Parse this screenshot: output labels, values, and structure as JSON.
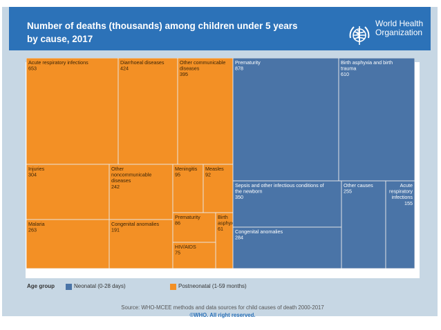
{
  "header": {
    "title_line1": "Number of deaths (thousands) among children under 5 years",
    "title_line2": "by cause, 2017",
    "org_line1": "World Health",
    "org_line2": "Organization"
  },
  "legend": {
    "title": "Age group",
    "items": [
      {
        "label": "Neonatal (0-28 days)",
        "color": "#4a74a7"
      },
      {
        "label": "Postneonatal (1-59 months)",
        "color": "#f39025"
      }
    ]
  },
  "source": {
    "text": "Source: WHO-MCEE methods and data sources for child causes of death 2000-2017",
    "copyright": "©WHO. All right reserved."
  },
  "chart_data": {
    "type": "treemap",
    "title": "Number of deaths (thousands) among children under 5 years by cause, 2017",
    "unit": "thousands",
    "groups": [
      {
        "name": "Postneonatal (1-59 months)",
        "color": "#f39025",
        "items": [
          {
            "name": "Acute respiratory infections",
            "value": 653
          },
          {
            "name": "Diarrhoeal diseases",
            "value": 424
          },
          {
            "name": "Other communicable diseases",
            "value": 395
          },
          {
            "name": "Injuries",
            "value": 304
          },
          {
            "name": "Other noncommunicable diseases",
            "value": 242
          },
          {
            "name": "Meningitis",
            "value": 95
          },
          {
            "name": "Measles",
            "value": 92
          },
          {
            "name": "Malaria",
            "value": 263
          },
          {
            "name": "Congenital anomalies",
            "value": 191
          },
          {
            "name": "Prematurity",
            "value": 86
          },
          {
            "name": "Birth asphyxia",
            "value": 61
          },
          {
            "name": "HIV/AIDS",
            "value": 75
          }
        ]
      },
      {
        "name": "Neonatal (0-28 days)",
        "color": "#4a74a7",
        "items": [
          {
            "name": "Prematurity",
            "value": 878
          },
          {
            "name": "Birth asphyxia and birth trauma",
            "value": 610
          },
          {
            "name": "Sepsis and other infectious conditions of the newborn",
            "value": 350
          },
          {
            "name": "Congenital anomalies",
            "value": 284
          },
          {
            "name": "Other causes",
            "value": 255
          },
          {
            "name": "Acute respiratory infections",
            "value": 155
          }
        ]
      }
    ]
  }
}
